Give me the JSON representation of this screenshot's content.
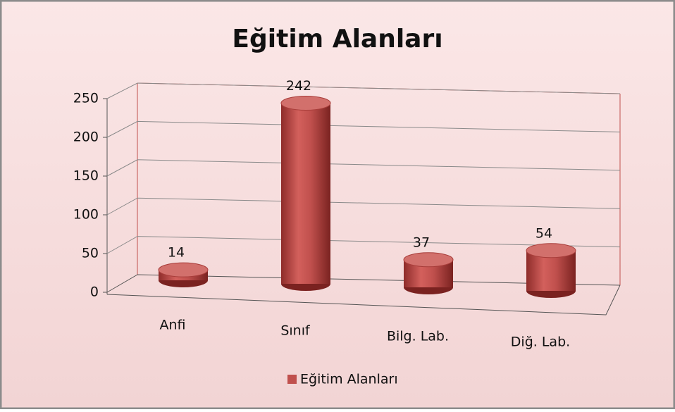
{
  "chart_data": {
    "type": "bar",
    "title": "Eğitim Alanları",
    "categories": [
      "Anfi",
      "Sınıf",
      "Bilg. Lab.",
      "Diğ. Lab."
    ],
    "series": [
      {
        "name": "Eğitim Alanları",
        "color": "#c0504d",
        "values": [
          14,
          242,
          37,
          54
        ]
      }
    ],
    "ylim": [
      0,
      250
    ],
    "yticks": [
      0,
      50,
      100,
      150,
      200,
      250
    ],
    "grid": true
  }
}
